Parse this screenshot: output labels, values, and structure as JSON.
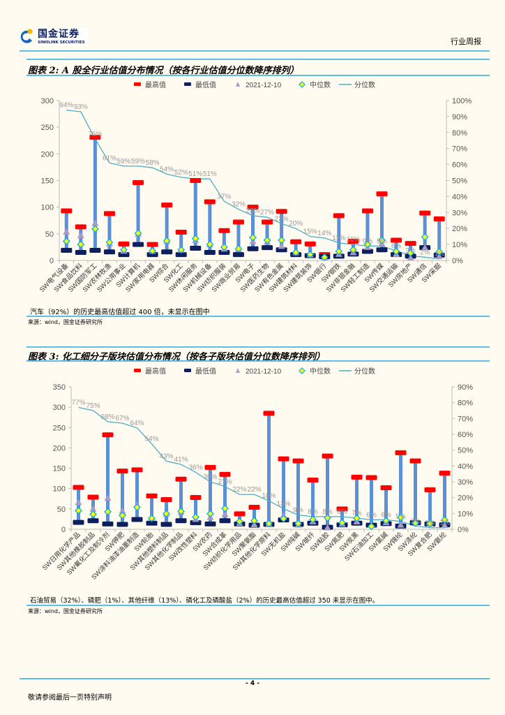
{
  "header": {
    "brand_cn": "国金证券",
    "brand_en": "SINOLINK SECURITIES",
    "report_type": "行业周报"
  },
  "figure2": {
    "title": "图表 2: A 股全行业估值分布情况（按各行业估值分位数降序排列）",
    "note": "汽车（92%）的历史最高估值超过 400 倍，未显示在图中",
    "source": "来源：wind，国金证券研究所"
  },
  "figure3": {
    "title": "图表 3: 化工细分子版块估值分布情况（按各子版块估值分位数降序排列）",
    "note": "石油贸易（32%）、磷肥（1%）、其他纤维（13%）、磷化工及磷酸盐（2%）的历史最高估值超过 350 未显示在图中。",
    "source": "来源：wind，国金证券研究所"
  },
  "footer": {
    "page": "- 4 -",
    "disclaimer": "敬请参阅最后一页特别声明"
  },
  "colors": {
    "max": "#ff0000",
    "min": "#0d1f5c",
    "current": "#a89bc6",
    "median": "#ffff00",
    "median_border": "#00b0f0",
    "range_bar": "#5b8fd6",
    "percentile_line": "#4bacc6",
    "rule": "#5bbfe8"
  },
  "chart_data": [
    {
      "type": "line",
      "id": "industry",
      "legend": [
        "最高值",
        "最低值",
        "2021-12-10",
        "中位数",
        "分位数"
      ],
      "legend_position": "top-center",
      "ylim": [
        0,
        300
      ],
      "yticks": [
        0,
        50,
        100,
        150,
        200,
        250,
        300
      ],
      "y2lim": [
        0,
        100
      ],
      "y2ticks": [
        "0%",
        "10%",
        "20%",
        "30%",
        "40%",
        "50%",
        "60%",
        "70%",
        "80%",
        "90%",
        "100%"
      ],
      "categories": [
        "SW电气设备",
        "SW食品饮料",
        "SW国防军工",
        "SW农林牧渔",
        "SW公用事业",
        "SW计算机",
        "SW家用电器",
        "SW综合",
        "SW化工",
        "SW休闲服务",
        "SW机械设备",
        "SW纺织服装",
        "SW商业贸易",
        "SW电子",
        "SW医药生物",
        "SW有色金属",
        "SW建筑材料",
        "SW建筑装饰",
        "SW银行",
        "SW钢铁",
        "SW非银金融",
        "SW轻工制造",
        "SW传媒",
        "SW交通运输",
        "SW房地产",
        "SW通信",
        "SW采掘"
      ],
      "series": [
        {
          "name": "最高值",
          "values": [
            93,
            63,
            231,
            88,
            31,
            146,
            30,
            104,
            53,
            150,
            110,
            56,
            72,
            100,
            72,
            92,
            35,
            31,
            11,
            84,
            36,
            93,
            125,
            38,
            32,
            89,
            78
          ]
        },
        {
          "name": "最低值",
          "values": [
            19,
            15,
            19,
            16,
            11,
            30,
            11,
            16,
            11,
            23,
            15,
            15,
            11,
            22,
            24,
            20,
            11,
            9,
            7,
            8,
            12,
            17,
            20,
            11,
            8,
            24,
            10
          ]
        },
        {
          "name": "2021-12-10",
          "values": [
            54,
            47,
            70,
            32,
            18,
            50,
            18,
            36,
            20,
            38,
            30,
            22,
            21,
            36,
            35,
            27,
            15,
            11,
            6,
            12,
            15,
            25,
            32,
            12,
            5,
            24,
            8
          ]
        },
        {
          "name": "中位数",
          "values": [
            36,
            30,
            59,
            34,
            20,
            51,
            18,
            37,
            20,
            41,
            30,
            25,
            22,
            43,
            38,
            38,
            15,
            11,
            6,
            17,
            20,
            30,
            38,
            17,
            14,
            44,
            16
          ]
        },
        {
          "name": "分位数",
          "values": [
            94,
            93,
            76,
            61,
            59,
            59,
            58,
            54,
            52,
            51,
            51,
            37,
            32,
            28,
            27,
            23,
            20,
            15,
            14,
            11,
            10,
            9,
            9,
            6,
            3,
            2,
            1
          ]
        }
      ]
    },
    {
      "type": "line",
      "id": "chemical",
      "legend": [
        "最高值",
        "最低值",
        "2021-12-10",
        "中位数",
        "分位数"
      ],
      "legend_position": "top-center",
      "ylim": [
        0,
        350
      ],
      "yticks": [
        0,
        50,
        100,
        150,
        200,
        250,
        300,
        350
      ],
      "y2lim": [
        0,
        90
      ],
      "y2ticks": [
        "0%",
        "10%",
        "20%",
        "30%",
        "40%",
        "50%",
        "60%",
        "70%",
        "80%",
        "90%"
      ],
      "categories": [
        "SW日用化学产品",
        "SW其他橡胶制品",
        "SW氟化工及制冷剂",
        "SW钾肥",
        "SW涂料油漆油墨制造",
        "SW轮胎",
        "SW其他塑料制品",
        "SW其他化学制品",
        "SW改性塑料",
        "SW农药",
        "SW合成革",
        "SW纺织化学用品",
        "SW聚氨酯",
        "SW其他化学原料",
        "SW无机盐",
        "SW纯碱",
        "SW玻纤",
        "SW粘胶",
        "SW氮肥",
        "SW炭黑",
        "SW石油加工",
        "SW氯碱",
        "SW锦纶",
        "SW涤纶",
        "SW复合肥",
        "SW氨纶"
      ],
      "series": [
        {
          "name": "最高值",
          "values": [
            103,
            79,
            232,
            143,
            146,
            82,
            73,
            123,
            78,
            152,
            135,
            38,
            54,
            285,
            173,
            168,
            121,
            180,
            50,
            128,
            127,
            102,
            188,
            168,
            97,
            138
          ]
        },
        {
          "name": "最低值",
          "values": [
            17,
            21,
            13,
            12,
            24,
            15,
            12,
            21,
            16,
            13,
            21,
            13,
            10,
            12,
            23,
            12,
            15,
            5,
            11,
            15,
            10,
            14,
            8,
            16,
            13,
            11
          ]
        },
        {
          "name": "2021-12-10",
          "values": [
            66,
            50,
            77,
            45,
            60,
            30,
            38,
            42,
            25,
            30,
            37,
            15,
            12,
            14,
            34,
            11,
            19,
            4,
            13,
            19,
            11,
            17,
            11,
            19,
            13,
            10
          ]
        },
        {
          "name": "中位数",
          "values": [
            46,
            37,
            43,
            34,
            54,
            27,
            38,
            44,
            30,
            38,
            51,
            19,
            21,
            14,
            26,
            14,
            24,
            28,
            16,
            27,
            7,
            21,
            29,
            15,
            14,
            23
          ]
        },
        {
          "name": "分位数",
          "values": [
            77,
            75,
            68,
            67,
            64,
            54,
            43,
            41,
            36,
            30,
            27,
            22,
            22,
            18,
            13,
            9,
            8,
            8,
            8,
            7,
            6,
            6,
            5,
            2,
            1,
            1
          ]
        }
      ]
    }
  ]
}
